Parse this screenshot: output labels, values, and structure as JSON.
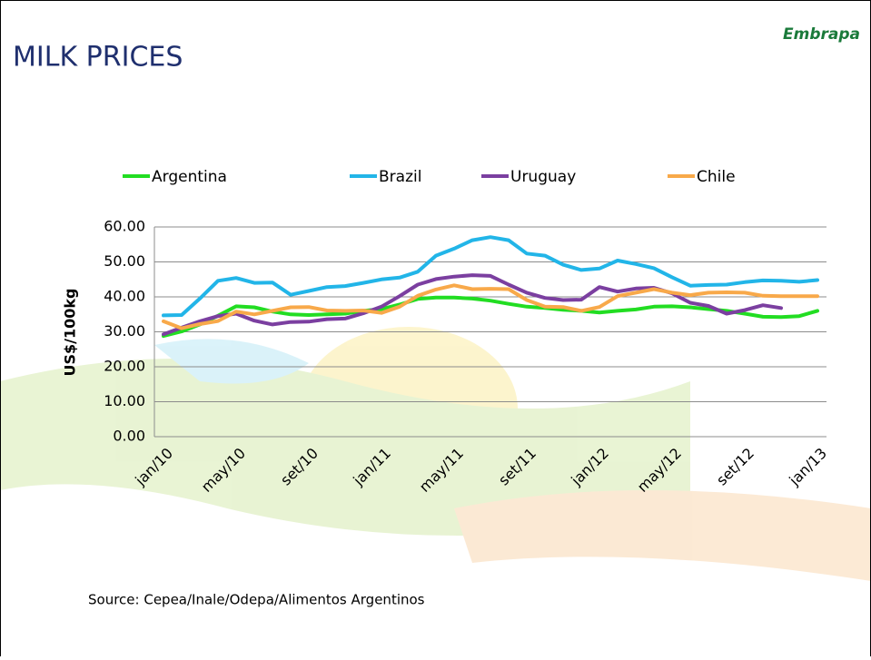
{
  "page_title": "MILK PRICES",
  "logo": "Embrapa",
  "source": "Source: Cepea/Inale/Odepa/Alimentos Argentinos",
  "chart_data": {
    "type": "line",
    "y_label": "US$/100kg",
    "categories": [
      "jan/10",
      null,
      null,
      null,
      "may/10",
      null,
      null,
      null,
      "set/10",
      null,
      null,
      null,
      "jan/11",
      null,
      null,
      null,
      "may/11",
      null,
      null,
      null,
      "set/11",
      null,
      null,
      null,
      "jan/12",
      null,
      null,
      null,
      "may/12",
      null,
      null,
      null,
      "set/12",
      null,
      null,
      null,
      "jan/13"
    ],
    "ylim": [
      0,
      60
    ],
    "yticks": [
      {
        "value": 0,
        "label": "0.00"
      },
      {
        "value": 10,
        "label": "10.00"
      },
      {
        "value": 20,
        "label": "20.00"
      },
      {
        "value": 30,
        "label": "30.00"
      },
      {
        "value": 40,
        "label": "40.00"
      },
      {
        "value": 50,
        "label": "50.00"
      },
      {
        "value": 60,
        "label": "60.00"
      }
    ],
    "grid": true,
    "legend": "top",
    "series": [
      {
        "name": "Argentina",
        "color": "#22dd22",
        "values": [
          28.8,
          30.1,
          32.1,
          34.6,
          37.3,
          37,
          35.8,
          35,
          34.8,
          35,
          35.2,
          36,
          36.5,
          37.8,
          39.4,
          39.8,
          39.8,
          39.5,
          38.9,
          38,
          37.2,
          36.8,
          36.3,
          36,
          35.5,
          36,
          36.4,
          37.2,
          37.3,
          37,
          36.5,
          36,
          35.2,
          34.3,
          34.2,
          34.5,
          36
        ]
      },
      {
        "name": "Brazil",
        "color": "#22b5e8",
        "values": [
          34.7,
          34.8,
          39.5,
          44.6,
          45.4,
          44,
          44.1,
          40.6,
          41.7,
          42.8,
          43.1,
          44,
          45,
          45.5,
          47.2,
          51.8,
          53.8,
          56.2,
          57.1,
          56.2,
          52.4,
          51.8,
          49.2,
          47.7,
          48.1,
          50.4,
          49.4,
          48.2,
          45.6,
          43.2,
          43.4,
          43.5,
          44.2,
          44.7,
          44.6,
          44.3,
          44.8
        ]
      },
      {
        "name": "Uruguay",
        "color": "#7b3fa0",
        "values": [
          29.3,
          31.2,
          33,
          34.5,
          35.2,
          33.2,
          32.1,
          32.8,
          32.9,
          33.6,
          33.8,
          35.3,
          37.2,
          40.2,
          43.5,
          45.1,
          45.8,
          46.2,
          46,
          43.5,
          41.2,
          39.7,
          39.1,
          39.2,
          42.8,
          41.5,
          42.4,
          42.6,
          41,
          38.3,
          37.4,
          35.2,
          36.2,
          37.6,
          36.8,
          null,
          null
        ]
      },
      {
        "name": "Chile",
        "color": "#f8a94a",
        "values": [
          33,
          31,
          32.2,
          33.1,
          35.8,
          35,
          36,
          37,
          37.1,
          36.1,
          36,
          36.1,
          35.4,
          37.2,
          40.3,
          42.1,
          43.3,
          42.2,
          42.3,
          42.2,
          39.1,
          37.2,
          37.1,
          36,
          37.1,
          40.2,
          41.2,
          42.2,
          41.2,
          40.5,
          41.2,
          41.3,
          41.2,
          40.3,
          40.2,
          40.2,
          40.2
        ]
      }
    ]
  }
}
